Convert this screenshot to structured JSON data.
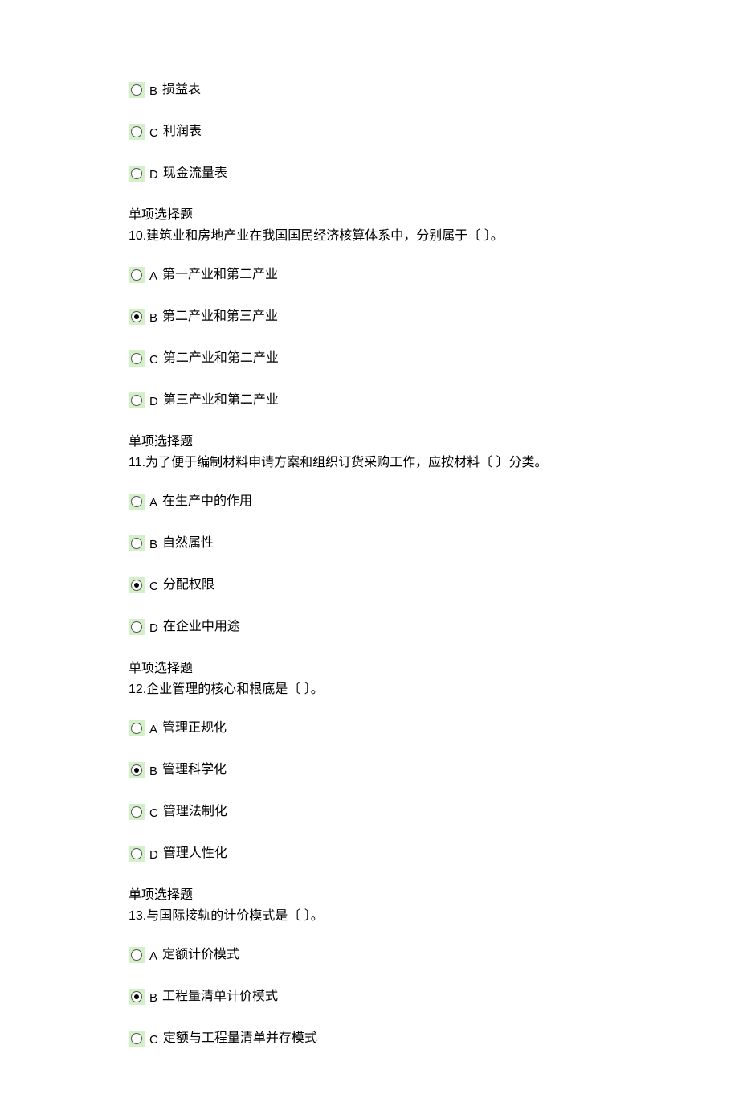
{
  "colors": {
    "radio_bg": "#d4f0c8",
    "text": "#000000",
    "page_bg": "#ffffff"
  },
  "blocks": [
    {
      "type": "options_only",
      "options": [
        {
          "letter": "B",
          "text": "损益表",
          "selected": false
        },
        {
          "letter": "C",
          "text": "利润表",
          "selected": false
        },
        {
          "letter": "D",
          "text": "现金流量表",
          "selected": false
        }
      ]
    },
    {
      "type": "question",
      "header": "单项选择题",
      "number": "10.",
      "text": "建筑业和房地产业在我国国民经济核算体系中，分别属于〔  〕。",
      "options": [
        {
          "letter": "A",
          "text": "第一产业和第二产业",
          "selected": false
        },
        {
          "letter": "B",
          "text": "第二产业和第三产业",
          "selected": true
        },
        {
          "letter": "C",
          "text": "第二产业和第二产业",
          "selected": false
        },
        {
          "letter": "D",
          "text": "第三产业和第二产业",
          "selected": false
        }
      ]
    },
    {
      "type": "question",
      "header": "单项选择题",
      "number": "11.",
      "text": "为了便于编制材料申请方案和组织订货采购工作，应按材料〔  〕分类。",
      "options": [
        {
          "letter": "A",
          "text": "在生产中的作用",
          "selected": false
        },
        {
          "letter": "B",
          "text": "自然属性",
          "selected": false
        },
        {
          "letter": "C",
          "text": "分配权限",
          "selected": true
        },
        {
          "letter": "D",
          "text": "在企业中用途",
          "selected": false
        }
      ]
    },
    {
      "type": "question",
      "header": "单项选择题",
      "number": "12.",
      "text": "企业管理的核心和根底是〔  〕。",
      "options": [
        {
          "letter": "A",
          "text": "管理正规化",
          "selected": false
        },
        {
          "letter": "B",
          "text": "管理科学化",
          "selected": true
        },
        {
          "letter": "C",
          "text": "管理法制化",
          "selected": false
        },
        {
          "letter": "D",
          "text": "管理人性化",
          "selected": false
        }
      ]
    },
    {
      "type": "question",
      "header": "单项选择题",
      "number": "13.",
      "text": "与国际接轨的计价模式是〔  〕。",
      "options": [
        {
          "letter": "A",
          "text": "定额计价模式",
          "selected": false
        },
        {
          "letter": "B",
          "text": "工程量清单计价模式",
          "selected": true
        },
        {
          "letter": "C",
          "text": "定额与工程量清单并存模式",
          "selected": false
        }
      ]
    }
  ]
}
